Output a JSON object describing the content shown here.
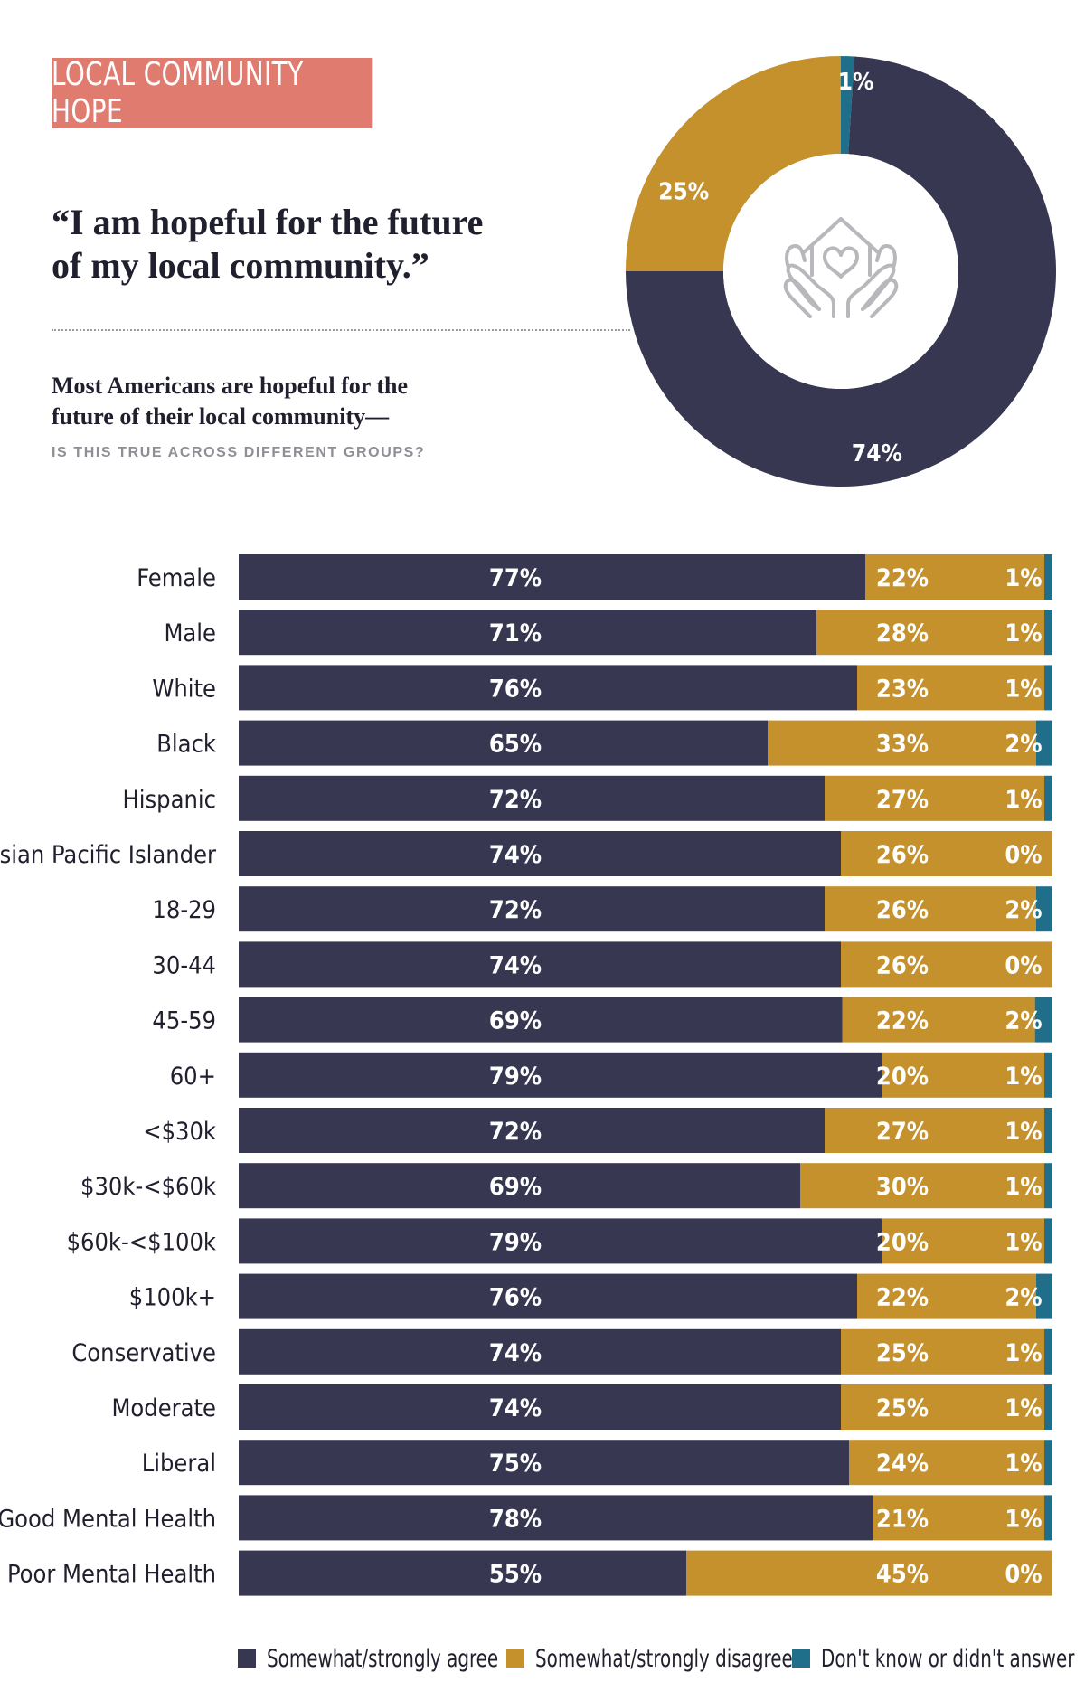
{
  "header": {
    "tag": "LOCAL COMMUNITY HOPE",
    "quote_line1": "“I am hopeful for the future",
    "quote_line2": "of my local community.”",
    "subtitle_line1": "Most Americans are hopeful for the",
    "subtitle_line2": "future of their local community—",
    "subtitle_caps": "IS THIS TRUE ACROSS DIFFERENT GROUPS?"
  },
  "colors": {
    "agree": "#373752",
    "disagree": "#c4912d",
    "dont_know": "#1f6f8b",
    "tag_bg": "#e07b70",
    "icon": "#b8b8bc"
  },
  "icon": "house-heart-hands-icon",
  "chart_data": [
    {
      "type": "pie",
      "variant": "donut",
      "labels": [
        "Somewhat/strongly agree",
        "Somewhat/strongly disagree",
        "Don't know or didn't answer"
      ],
      "values": [
        74,
        25,
        1
      ],
      "value_labels": [
        "74%",
        "25%",
        "1%"
      ]
    },
    {
      "type": "bar",
      "orientation": "horizontal",
      "stacked": true,
      "categories": [
        "Female",
        "Male",
        "White",
        "Black",
        "Hispanic",
        "Asian Pacific Islander",
        "18-29",
        "30-44",
        "45-59",
        "60+",
        "<$30k",
        "$30k-<$60k",
        "$60k-<$100k",
        "$100k+",
        "Conservative",
        "Moderate",
        "Liberal",
        "Good Mental Health",
        "Poor Mental Health"
      ],
      "series": [
        {
          "name": "Somewhat/strongly agree",
          "values": [
            77,
            71,
            76,
            65,
            72,
            74,
            72,
            74,
            69,
            79,
            72,
            69,
            79,
            76,
            74,
            74,
            75,
            78,
            55
          ]
        },
        {
          "name": "Somewhat/strongly disagree",
          "values": [
            22,
            28,
            23,
            33,
            27,
            26,
            26,
            26,
            22,
            20,
            27,
            30,
            20,
            22,
            25,
            25,
            24,
            21,
            45
          ]
        },
        {
          "name": "Don't know or didn't answer",
          "values": [
            1,
            1,
            1,
            2,
            1,
            0,
            2,
            0,
            2,
            1,
            1,
            1,
            1,
            2,
            1,
            1,
            1,
            1,
            0
          ]
        }
      ],
      "xlim": [
        0,
        100
      ],
      "legend": "bottom"
    }
  ]
}
